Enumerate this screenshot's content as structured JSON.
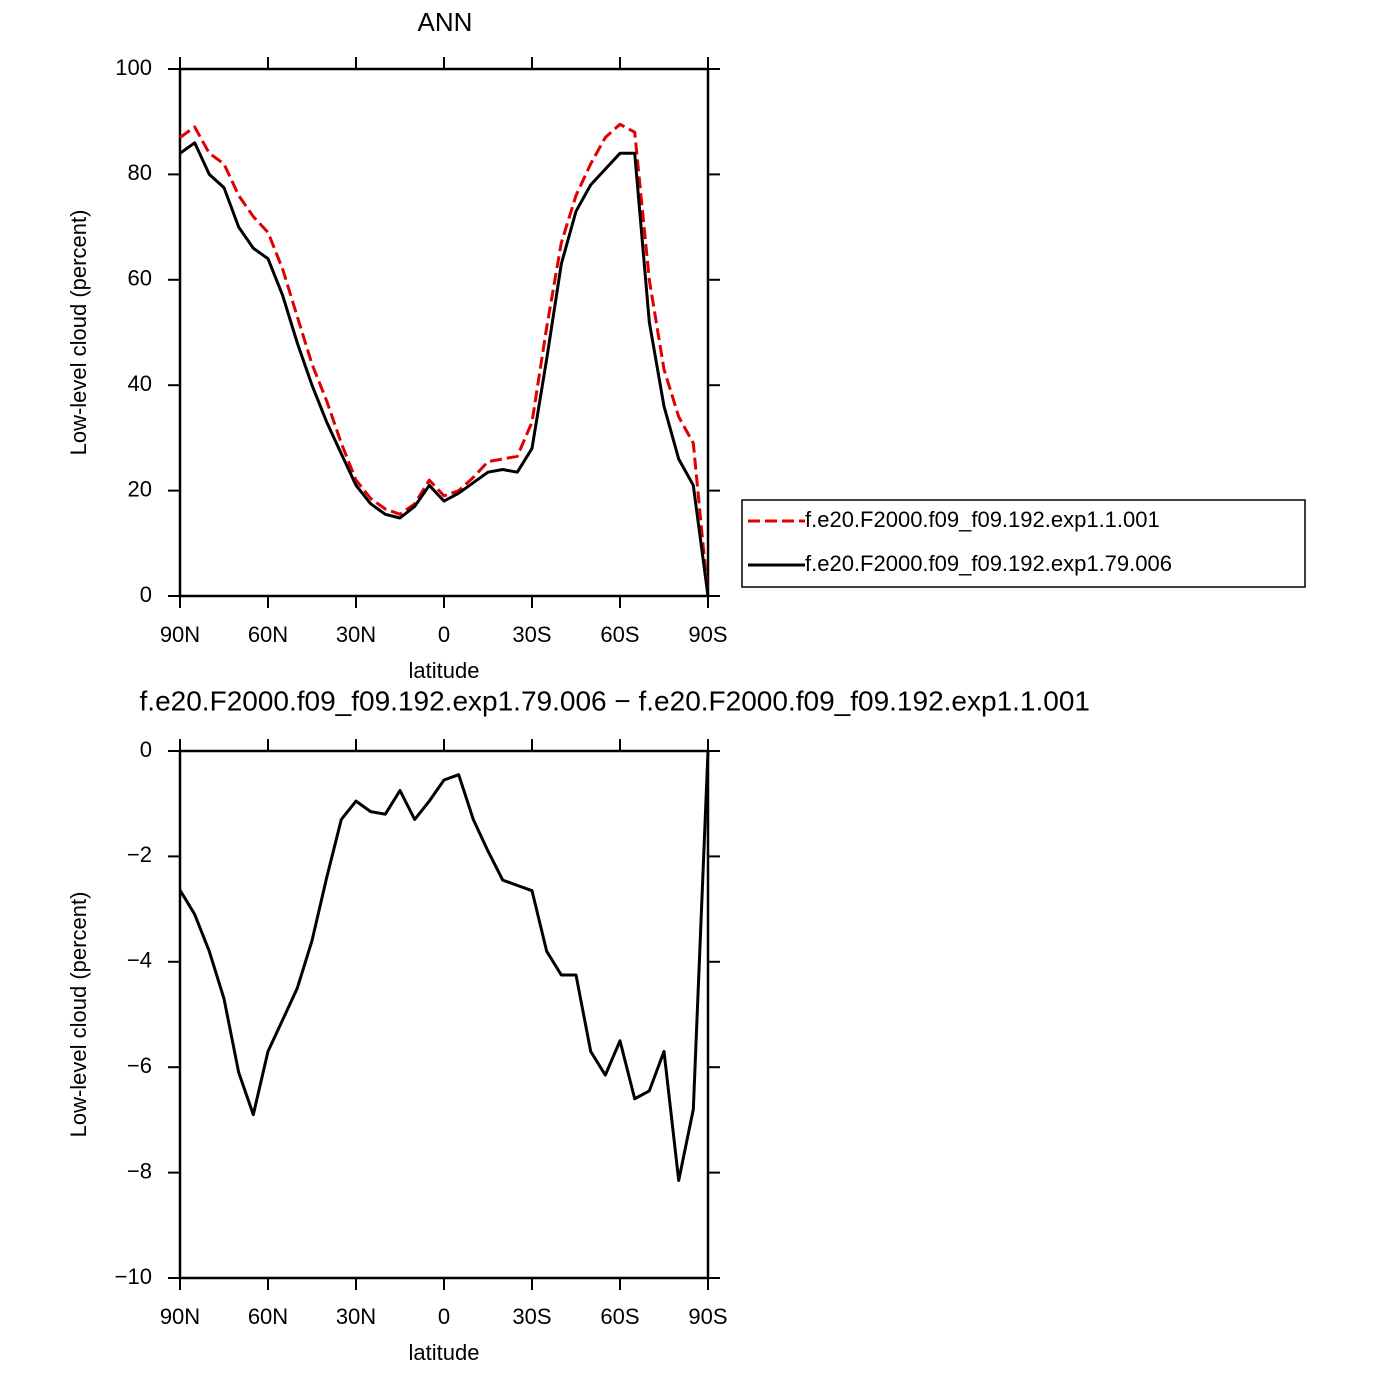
{
  "chart_data": [
    {
      "type": "line",
      "title": "ANN",
      "xlabel": "latitude",
      "ylabel": "Low-level cloud (percent)",
      "x": [
        90,
        85,
        80,
        75,
        70,
        65,
        60,
        55,
        50,
        45,
        40,
        35,
        30,
        25,
        20,
        15,
        10,
        5,
        0,
        -5,
        -10,
        -15,
        -20,
        -25,
        -30,
        -35,
        -40,
        -45,
        -50,
        -55,
        -60,
        -65,
        -70,
        -75,
        -80,
        -85,
        -90
      ],
      "xlim": [
        90,
        -90
      ],
      "xticks": [
        {
          "value": 90,
          "label": "90N"
        },
        {
          "value": 60,
          "label": "60N"
        },
        {
          "value": 30,
          "label": "30N"
        },
        0,
        {
          "value": -30,
          "label": "30S"
        },
        {
          "value": -60,
          "label": "60S"
        },
        {
          "value": -90,
          "label": "90S"
        }
      ],
      "ylim": [
        0,
        100
      ],
      "yticks": [
        0,
        20,
        40,
        60,
        80,
        100
      ],
      "legend": "right",
      "series": [
        {
          "name": "f.e20.F2000.f09_f09.192.exp1.1.001",
          "color": "#e00000",
          "linestyle": "dashed",
          "values": [
            87,
            89,
            84,
            82,
            76,
            72,
            69,
            62,
            53,
            44,
            37,
            29,
            22,
            18.5,
            16.5,
            15.5,
            17.5,
            22,
            19,
            20,
            22.5,
            25.5,
            26,
            26.5,
            33,
            51,
            67,
            76,
            82,
            87,
            89.5,
            88,
            60,
            43,
            34,
            29,
            0
          ]
        },
        {
          "name": "f.e20.F2000.f09_f09.192.exp1.79.006",
          "color": "#000000",
          "linestyle": "solid",
          "values": [
            84,
            86,
            80,
            77.5,
            70,
            66,
            64,
            57,
            48,
            40,
            33,
            27,
            21,
            17.5,
            15.5,
            14.8,
            17,
            21,
            18,
            19.5,
            21.5,
            23.5,
            24,
            23.5,
            28,
            45,
            63,
            73,
            78,
            81,
            84,
            84,
            52,
            36,
            26,
            21,
            0
          ]
        }
      ]
    },
    {
      "type": "line",
      "title": "f.e20.F2000.f09_f09.192.exp1.79.006 − f.e20.F2000.f09_f09.192.exp1.1.001",
      "xlabel": "latitude",
      "ylabel": "Low-level cloud (percent)",
      "x": [
        90,
        85,
        80,
        75,
        70,
        65,
        60,
        55,
        50,
        45,
        40,
        35,
        30,
        25,
        20,
        15,
        10,
        5,
        0,
        -5,
        -10,
        -15,
        -20,
        -25,
        -30,
        -35,
        -40,
        -45,
        -50,
        -55,
        -60,
        -65,
        -70,
        -75,
        -80,
        -85,
        -90
      ],
      "xlim": [
        90,
        -90
      ],
      "xticks": [
        {
          "value": 90,
          "label": "90N"
        },
        {
          "value": 60,
          "label": "60N"
        },
        {
          "value": 30,
          "label": "30N"
        },
        0,
        {
          "value": -30,
          "label": "30S"
        },
        {
          "value": -60,
          "label": "60S"
        },
        {
          "value": -90,
          "label": "90S"
        }
      ],
      "ylim": [
        -10,
        0
      ],
      "yticks": [
        {
          "value": -10,
          "label": "−10"
        },
        {
          "value": -8,
          "label": "−8"
        },
        {
          "value": -6,
          "label": "−6"
        },
        {
          "value": -4,
          "label": "−4"
        },
        {
          "value": -2,
          "label": "−2"
        },
        0
      ],
      "series": [
        {
          "color": "#000000",
          "linestyle": "solid",
          "values": [
            -2.64,
            -3.1,
            -3.8,
            -4.7,
            -6.1,
            -6.9,
            -5.7,
            -5.1,
            -4.5,
            -3.6,
            -2.4,
            -1.3,
            -0.95,
            -1.15,
            -1.2,
            -0.75,
            -1.3,
            -0.95,
            -0.55,
            -0.45,
            -1.3,
            -1.9,
            -2.45,
            -2.55,
            -2.65,
            -3.8,
            -4.25,
            -4.25,
            -5.7,
            -6.15,
            -5.5,
            -6.6,
            -6.45,
            -5.7,
            -8.15,
            -6.8,
            0
          ]
        }
      ]
    }
  ]
}
